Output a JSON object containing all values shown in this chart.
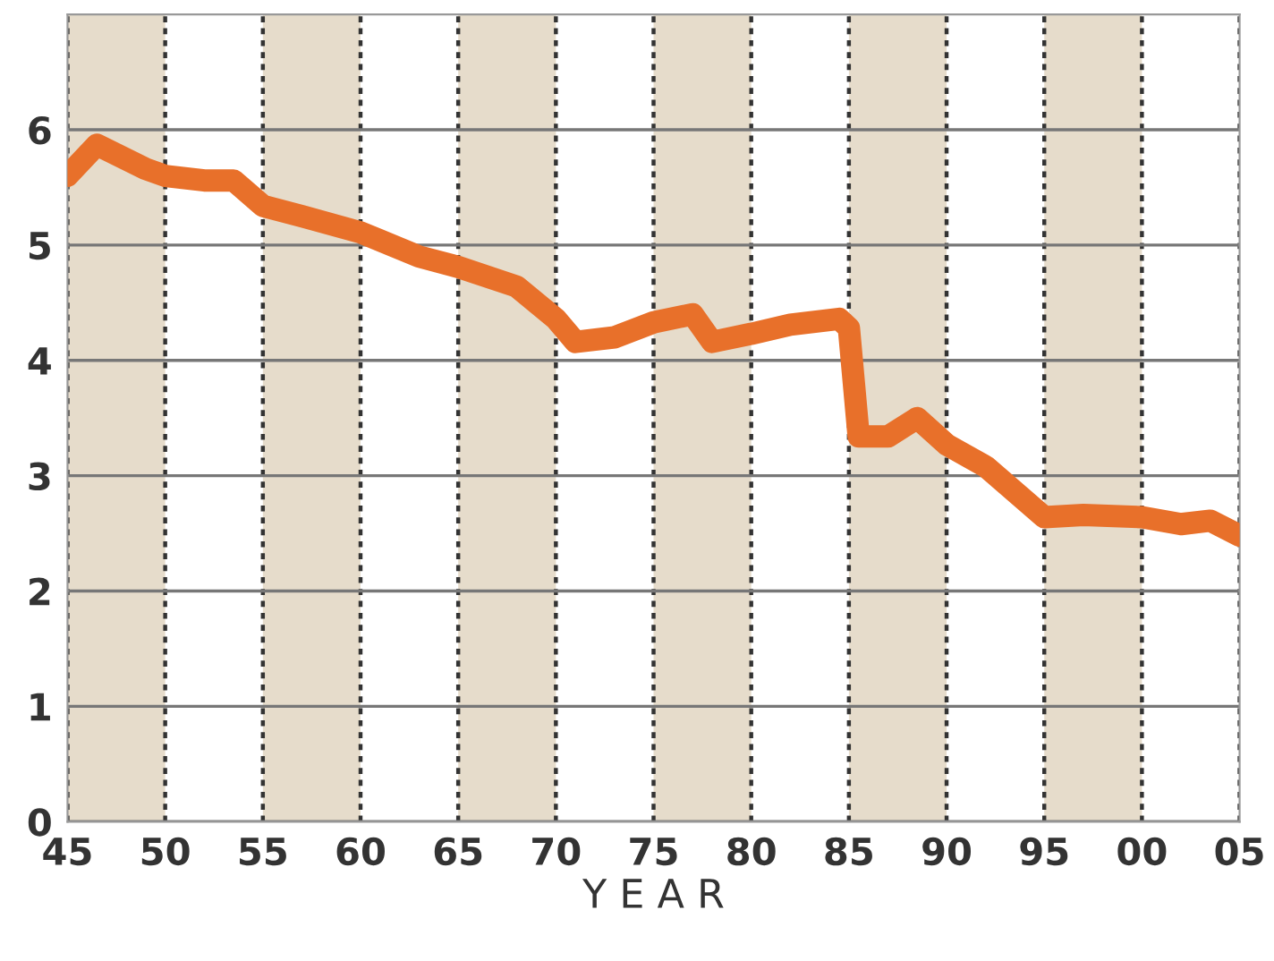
{
  "chart_data": {
    "type": "line",
    "xlabel": "Y E A R",
    "x": [
      1945,
      1946.5,
      1949,
      1950,
      1952,
      1953.5,
      1955,
      1957,
      1960,
      1963,
      1965,
      1968,
      1970,
      1971,
      1973,
      1975,
      1977,
      1978,
      1980,
      1982,
      1984.5,
      1985,
      1985.5,
      1987,
      1988.5,
      1990,
      1992,
      1995,
      1997,
      2000,
      2002,
      2003.5,
      2005
    ],
    "series": [
      {
        "color": "#e8702a",
        "values": [
          5.6,
          5.87,
          5.66,
          5.6,
          5.56,
          5.56,
          5.34,
          5.25,
          5.11,
          4.9,
          4.81,
          4.64,
          4.36,
          4.16,
          4.2,
          4.33,
          4.4,
          4.16,
          4.23,
          4.31,
          4.36,
          4.28,
          3.34,
          3.34,
          3.5,
          3.27,
          3.08,
          2.64,
          2.66,
          2.64,
          2.58,
          2.61,
          2.48
        ]
      }
    ],
    "xlim": [
      1945,
      2005
    ],
    "ylim": [
      0,
      7
    ],
    "xticks": [
      {
        "value": 1945,
        "label": "45"
      },
      {
        "value": 1950,
        "label": "50"
      },
      {
        "value": 1955,
        "label": "55"
      },
      {
        "value": 1960,
        "label": "60"
      },
      {
        "value": 1965,
        "label": "65"
      },
      {
        "value": 1970,
        "label": "70"
      },
      {
        "value": 1975,
        "label": "75"
      },
      {
        "value": 1980,
        "label": "80"
      },
      {
        "value": 1985,
        "label": "85"
      },
      {
        "value": 1990,
        "label": "90"
      },
      {
        "value": 1995,
        "label": "95"
      },
      {
        "value": 2000,
        "label": "00"
      },
      {
        "value": 2005,
        "label": "05"
      }
    ],
    "yticks": [
      0,
      1,
      2,
      3,
      4,
      5,
      6
    ],
    "bands": [
      {
        "axis": "x",
        "from": 1945,
        "to": 1950,
        "color": "#e6dccb"
      },
      {
        "axis": "x",
        "from": 1955,
        "to": 1960,
        "color": "#e6dccb"
      },
      {
        "axis": "x",
        "from": 1965,
        "to": 1970,
        "color": "#e6dccb"
      },
      {
        "axis": "x",
        "from": 1975,
        "to": 1980,
        "color": "#e6dccb"
      },
      {
        "axis": "x",
        "from": 1985,
        "to": 1990,
        "color": "#e6dccb"
      },
      {
        "axis": "x",
        "from": 1995,
        "to": 2000,
        "color": "#e6dccb"
      }
    ],
    "grid": true,
    "line_style": "solid",
    "marker": "none"
  }
}
